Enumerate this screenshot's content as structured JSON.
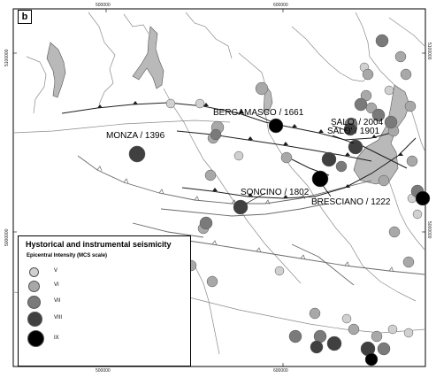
{
  "panel_label": "b",
  "coordinates": {
    "top": [
      "500000",
      "600000"
    ],
    "bottom": [
      "500000",
      "600000"
    ],
    "left": [
      "5100000",
      "5000000"
    ],
    "right": [
      "5100000",
      "5000000"
    ]
  },
  "places": [
    {
      "name": "BERGAMASCO / 1661"
    },
    {
      "name": "MONZA / 1396"
    },
    {
      "name": "SALO' / 2004"
    },
    {
      "name": "SALO' / 1901"
    },
    {
      "name": "SONCINO / 1802"
    },
    {
      "name": "BRESCIANO / 1222"
    }
  ],
  "legend": {
    "title": "Hystorical and instrumental seismicity",
    "subtitle": "Epicentral Intensity (MCS scale)",
    "classes": [
      {
        "label": "V",
        "color": "#d0d0d0"
      },
      {
        "label": "VI",
        "color": "#a8a8a8"
      },
      {
        "label": "VII",
        "color": "#7a7a7a"
      },
      {
        "label": "VIII",
        "color": "#404040"
      },
      {
        "label": "IX",
        "color": "#000000"
      }
    ]
  },
  "colors": {
    "lake": "#b9b9b9",
    "river": "#8a8a8a",
    "fault": "#1e1e1e",
    "thrust": "#6a6a6a"
  }
}
